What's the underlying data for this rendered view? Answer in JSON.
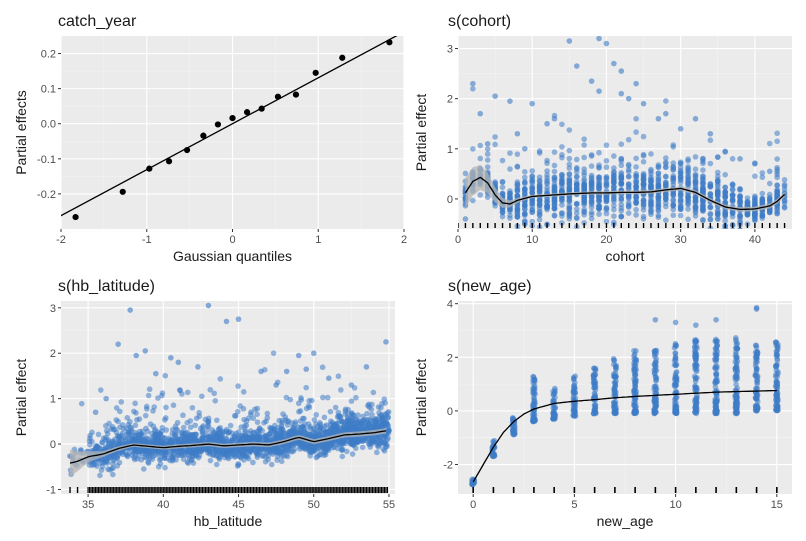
{
  "chart_data": [
    {
      "type": "scatter",
      "id": "qq",
      "title": "catch_year",
      "xlabel": "Gaussian quantiles",
      "ylabel": "Partial effects",
      "xlim": [
        -2,
        2
      ],
      "ylim": [
        -0.3,
        0.25
      ],
      "xticks": [
        -2,
        -1,
        0,
        1,
        2
      ],
      "xtick_labels": [
        "-2",
        "-1",
        "0",
        "1",
        "2"
      ],
      "yticks": [
        -0.2,
        -0.1,
        0.0,
        0.1,
        0.2
      ],
      "ytick_labels": [
        "-0.2",
        "-0.1",
        "0.0",
        "0.1",
        "0.2"
      ],
      "points": {
        "x": [
          -1.83,
          -1.28,
          -0.97,
          -0.74,
          -0.53,
          -0.34,
          -0.17,
          0.0,
          0.17,
          0.34,
          0.53,
          0.74,
          0.97,
          1.28,
          1.83
        ],
        "y": [
          -0.266,
          -0.194,
          -0.128,
          -0.107,
          -0.075,
          -0.034,
          -0.002,
          0.016,
          0.033,
          0.043,
          0.077,
          0.083,
          0.145,
          0.188,
          0.232
        ]
      },
      "reference_line": {
        "slope": 0.131,
        "intercept": 0.0
      },
      "colors": {
        "points": "#000000",
        "line": "#000000"
      }
    },
    {
      "type": "line",
      "id": "cohort",
      "title": "s(cohort)",
      "xlabel": "cohort",
      "ylabel": "Partial effect",
      "xlim": [
        0,
        45
      ],
      "ylim": [
        -0.6,
        3.25
      ],
      "xticks": [
        0,
        10,
        20,
        30,
        40
      ],
      "xtick_labels": [
        "0",
        "10",
        "20",
        "30",
        "40"
      ],
      "yticks": [
        0,
        1,
        2,
        3
      ],
      "ytick_labels": [
        "0",
        "1",
        "2",
        "3"
      ],
      "smooth": {
        "x": [
          1,
          2,
          3,
          4,
          5,
          6,
          7,
          8,
          10,
          12,
          15,
          18,
          20,
          22,
          24,
          26,
          28,
          30,
          32,
          34,
          36,
          38,
          40,
          42,
          43,
          44
        ],
        "y": [
          0.12,
          0.35,
          0.43,
          0.32,
          0.08,
          -0.08,
          -0.1,
          -0.03,
          0.05,
          0.07,
          0.1,
          0.12,
          0.12,
          0.13,
          0.13,
          0.14,
          0.18,
          0.21,
          0.13,
          -0.03,
          -0.16,
          -0.21,
          -0.2,
          -0.14,
          -0.05,
          0.09
        ]
      },
      "band_halfwidth": {
        "x": [
          1,
          2,
          3,
          4,
          5,
          6,
          7,
          8,
          10,
          44
        ],
        "w": [
          0.3,
          0.28,
          0.25,
          0.2,
          0.15,
          0.1,
          0.07,
          0.05,
          0.03,
          0.05
        ]
      },
      "points": {
        "x": [
          1,
          1,
          2,
          3,
          4,
          5,
          7,
          8,
          9,
          10,
          12,
          13,
          15,
          16,
          18,
          19,
          19,
          20,
          21,
          22,
          22,
          23,
          24,
          25,
          27,
          28,
          30,
          32,
          34,
          36,
          38,
          40,
          42
        ],
        "y": [
          -0.4,
          -0.1,
          2.3,
          1.7,
          1.1,
          2.05,
          1.95,
          1.3,
          1.0,
          1.9,
          1.5,
          1.6,
          3.15,
          2.65,
          2.35,
          2.15,
          3.2,
          3.1,
          2.7,
          2.55,
          2.1,
          2.0,
          2.3,
          1.9,
          1.6,
          1.7,
          1.4,
          1.6,
          1.3,
          0.95,
          0.8,
          0.7,
          0.55
        ]
      },
      "colors": {
        "points": "#3e7cc6",
        "line": "#000000",
        "band": "#b4b4b4"
      }
    },
    {
      "type": "line",
      "id": "lat",
      "title": "s(hb_latitude)",
      "xlabel": "hb_latitude",
      "ylabel": "Partial effect",
      "xlim": [
        33.2,
        55.4
      ],
      "ylim": [
        -1.1,
        3.15
      ],
      "xticks": [
        35,
        40,
        45,
        50,
        55
      ],
      "xtick_labels": [
        "35",
        "40",
        "45",
        "50",
        "55"
      ],
      "yticks": [
        -1,
        0,
        1,
        2,
        3
      ],
      "ytick_labels": [
        "-1",
        "0",
        "1",
        "2",
        "3"
      ],
      "smooth": {
        "x": [
          33.8,
          34.3,
          35,
          36,
          37,
          38,
          39,
          40,
          41,
          42,
          43,
          44,
          45,
          46,
          47,
          48,
          49,
          50,
          51,
          52,
          53,
          54,
          55
        ],
        "y": [
          -0.42,
          -0.38,
          -0.28,
          -0.22,
          -0.1,
          -0.02,
          -0.05,
          -0.08,
          -0.05,
          -0.03,
          0.0,
          -0.04,
          -0.02,
          0.0,
          -0.02,
          0.05,
          0.15,
          0.05,
          0.12,
          0.2,
          0.22,
          0.25,
          0.3
        ]
      },
      "band_halfwidth": {
        "x": [
          33.8,
          34.3,
          35,
          36,
          38,
          55
        ],
        "w": [
          0.3,
          0.22,
          0.12,
          0.06,
          0.04,
          0.06
        ]
      },
      "points": {
        "x": [
          35.5,
          36.2,
          37.0,
          37.8,
          38.2,
          38.8,
          39.5,
          40.5,
          41.0,
          42.3,
          43.0,
          44.2,
          45.0,
          46.5,
          47.5,
          48.2,
          49.0,
          49.5,
          50.0,
          51.0,
          52.5,
          53.5,
          54.8
        ],
        "y": [
          0.7,
          1.0,
          2.2,
          2.95,
          1.95,
          2.05,
          1.55,
          1.9,
          1.8,
          1.7,
          3.05,
          2.7,
          2.75,
          1.6,
          1.3,
          1.6,
          1.95,
          1.65,
          2.0,
          1.45,
          1.3,
          1.7,
          2.25
        ]
      },
      "colors": {
        "points": "#3e7cc6",
        "line": "#000000",
        "band": "#b4b4b4"
      }
    },
    {
      "type": "line",
      "id": "age",
      "title": "s(new_age)",
      "xlabel": "new_age",
      "ylabel": "Partial effect",
      "xlim": [
        -0.75,
        15.75
      ],
      "ylim": [
        -3.1,
        4.1
      ],
      "xticks": [
        0,
        5,
        10,
        15
      ],
      "xtick_labels": [
        "0",
        "5",
        "10",
        "15"
      ],
      "yticks": [
        -2,
        0,
        2,
        4
      ],
      "ytick_labels": [
        "-2",
        "0",
        "2",
        "4"
      ],
      "smooth": {
        "x": [
          0,
          0.5,
          1,
          1.5,
          2,
          2.5,
          3,
          4,
          5,
          6,
          7,
          8,
          9,
          10,
          11,
          12,
          13,
          14,
          15
        ],
        "y": [
          -2.65,
          -2.0,
          -1.35,
          -0.8,
          -0.4,
          -0.12,
          0.07,
          0.28,
          0.36,
          0.42,
          0.49,
          0.54,
          0.58,
          0.62,
          0.66,
          0.7,
          0.72,
          0.74,
          0.76
        ]
      },
      "columns": {
        "x": [
          0,
          1,
          2,
          3,
          4,
          5,
          6,
          7,
          8,
          9,
          10,
          11,
          12,
          13,
          14,
          15
        ],
        "low": [
          -2.75,
          -1.7,
          -0.9,
          -0.4,
          -0.3,
          -0.2,
          -0.1,
          -0.1,
          -0.1,
          -0.1,
          -0.1,
          -0.1,
          -0.1,
          -0.1,
          0.0,
          0.0
        ],
        "high": [
          -2.55,
          -1.1,
          -0.2,
          1.35,
          0.85,
          1.3,
          1.6,
          1.95,
          2.25,
          2.35,
          2.55,
          2.65,
          2.7,
          2.75,
          2.5,
          2.65
        ]
      },
      "outliers": {
        "x": [
          9,
          10,
          11,
          12,
          14,
          14
        ],
        "y": [
          3.4,
          3.3,
          3.2,
          3.4,
          3.85,
          3.8
        ]
      },
      "colors": {
        "points": "#3e7cc6",
        "line": "#000000"
      }
    }
  ]
}
